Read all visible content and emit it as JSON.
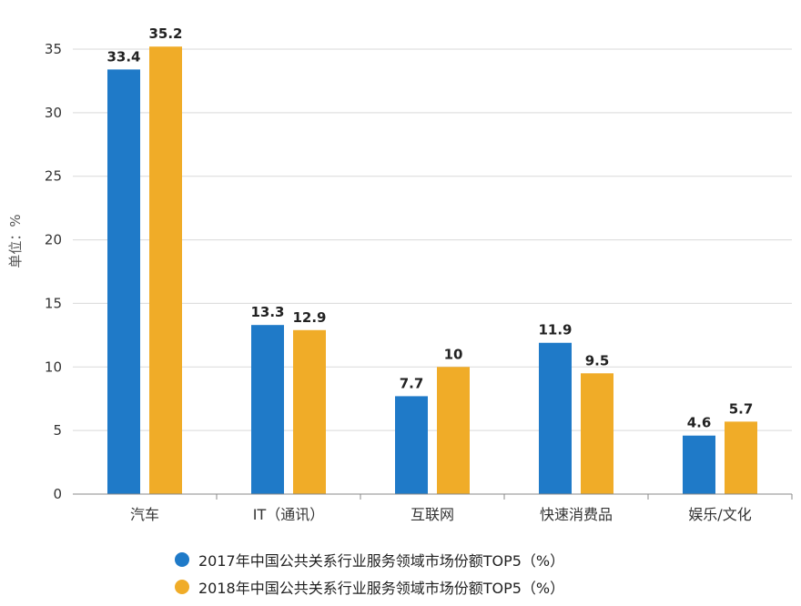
{
  "chart_data": {
    "type": "bar",
    "categories": [
      "汽车",
      "IT（通讯）",
      "互联网",
      "快速消费品",
      "娱乐/文化"
    ],
    "series": [
      {
        "name": "2017年中国公共关系行业服务领域市场份额TOP5（%）",
        "values": [
          33.4,
          13.3,
          7.7,
          11.9,
          4.6
        ],
        "value_labels": [
          "33.4",
          "13.3",
          "7.7",
          "11.9",
          "4.6"
        ],
        "color": "#1f7ac8"
      },
      {
        "name": "2018年中国公共关系行业服务领域市场份额TOP5（%）",
        "values": [
          35.2,
          12.9,
          10,
          9.5,
          5.7
        ],
        "value_labels": [
          "35.2",
          "12.9",
          "10",
          "9.5",
          "5.7"
        ],
        "color": "#f0ac28"
      }
    ],
    "ylabel": "单位：%",
    "ylim": [
      0,
      35
    ],
    "yticks": [
      "0",
      "5",
      "10",
      "15",
      "20",
      "25",
      "30",
      "35"
    ],
    "grid": true,
    "legend_position": "bottom"
  }
}
